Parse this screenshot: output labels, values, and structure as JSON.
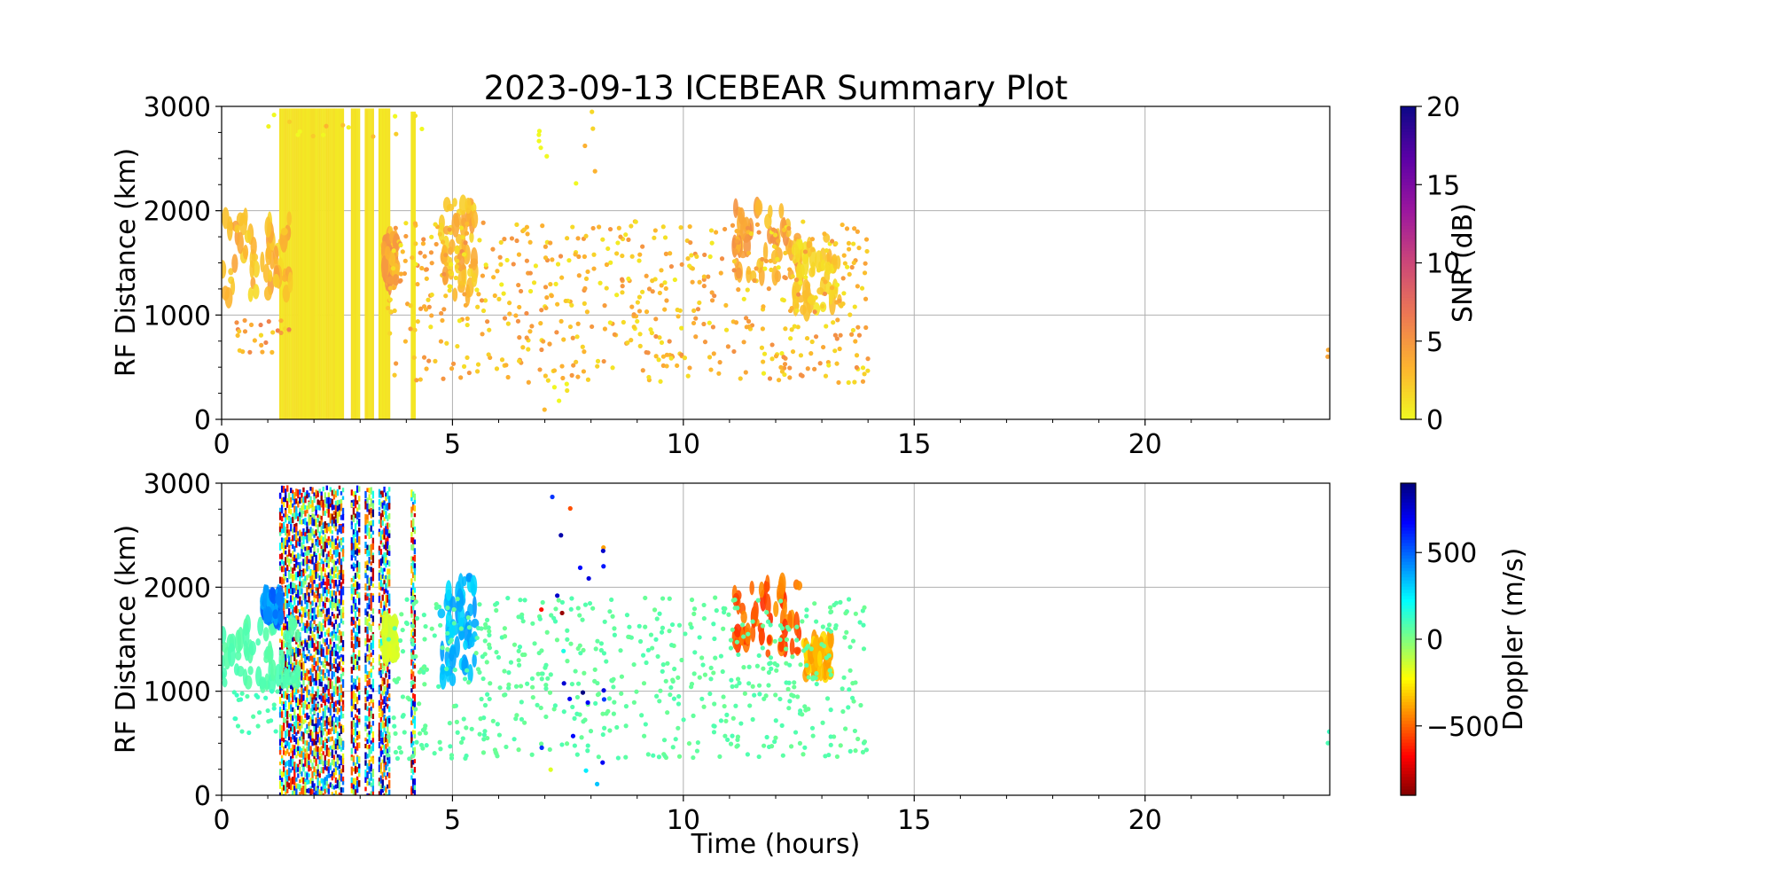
{
  "chart_data": [
    {
      "type": "scatter",
      "title": "2023-09-13 ICEBEAR Summary Plot",
      "xlabel": "",
      "ylabel": "RF Distance (km)",
      "xlim": [
        0,
        24
      ],
      "ylim": [
        0,
        3000
      ],
      "xticks": [
        "0",
        "5",
        "10",
        "15",
        "20"
      ],
      "yticks": [
        "0",
        "1000",
        "2000",
        "3000"
      ],
      "grid": true,
      "color_variable": "SNR (dB)",
      "colorbar": {
        "label": "SNR (dB)",
        "range": [
          0,
          20
        ],
        "ticks": [
          "0",
          "5",
          "10",
          "15",
          "20"
        ],
        "colormap": "plasma_r",
        "stops": [
          "#f0f921",
          "#fdb42f",
          "#ed7953",
          "#cc4778",
          "#9c179e",
          "#5c01a6",
          "#0d0887"
        ]
      },
      "features": [
        {
          "kind": "band",
          "x": [
            1.25,
            2.65
          ],
          "y": [
            0,
            2980
          ],
          "value": 1
        },
        {
          "kind": "band",
          "x": [
            2.8,
            3.0
          ],
          "y": [
            0,
            2980
          ],
          "value": 1
        },
        {
          "kind": "band",
          "x": [
            3.1,
            3.3
          ],
          "y": [
            0,
            2980
          ],
          "value": 1
        },
        {
          "kind": "band",
          "x": [
            3.4,
            3.65
          ],
          "y": [
            0,
            2980
          ],
          "value": 1
        },
        {
          "kind": "band",
          "x": [
            4.1,
            4.2
          ],
          "y": [
            0,
            2950
          ],
          "value": 1
        },
        {
          "kind": "blob",
          "x": [
            0.0,
            1.5
          ],
          "y": [
            1150,
            1950
          ],
          "value": 3
        },
        {
          "kind": "blob",
          "x": [
            3.5,
            3.8
          ],
          "y": [
            1300,
            1750
          ],
          "value": 4
        },
        {
          "kind": "blob",
          "x": [
            4.75,
            5.5
          ],
          "y": [
            1150,
            2100
          ],
          "value": 3
        },
        {
          "kind": "blob",
          "x": [
            11.1,
            12.6
          ],
          "y": [
            1350,
            2050
          ],
          "value": 4
        },
        {
          "kind": "blob",
          "x": [
            12.4,
            13.4
          ],
          "y": [
            1050,
            1750
          ],
          "value": 2
        }
      ],
      "scatter": [
        {
          "x": [
            0.3,
            1.5
          ],
          "y": [
            600,
            950
          ],
          "n": 25,
          "value": 4
        },
        {
          "x": [
            1.0,
            4.5
          ],
          "y": [
            2700,
            2950
          ],
          "n": 15,
          "value": 1
        },
        {
          "x": [
            3.6,
            14.0
          ],
          "y": [
            350,
            1900
          ],
          "n": 600,
          "value": 3
        },
        {
          "x": [
            6.8,
            8.2
          ],
          "y": [
            2200,
            3000
          ],
          "n": 10,
          "value": 1
        },
        {
          "x": [
            6.9,
            7.5
          ],
          "y": [
            50,
            400
          ],
          "n": 6,
          "value": 1
        },
        {
          "x": [
            23.95,
            24.0
          ],
          "y": [
            500,
            750
          ],
          "n": 2,
          "value": 4
        }
      ]
    },
    {
      "type": "scatter",
      "title": "",
      "xlabel": "Time (hours)",
      "ylabel": "RF Distance (km)",
      "xlim": [
        0,
        24
      ],
      "ylim": [
        0,
        3000
      ],
      "xticks": [
        "0",
        "5",
        "10",
        "15",
        "20"
      ],
      "yticks": [
        "0",
        "1000",
        "2000",
        "3000"
      ],
      "grid": true,
      "color_variable": "Doppler (m/s)",
      "colorbar": {
        "label": "Doppler (m/s)",
        "range": [
          -900,
          900
        ],
        "ticks": [
          "−500",
          "0",
          "500"
        ],
        "tick_values": [
          -500,
          0,
          500
        ],
        "colormap": "jet_r",
        "stops": [
          "#7f0000",
          "#ff0000",
          "#ff8000",
          "#ffff00",
          "#80ff80",
          "#00ffff",
          "#0080ff",
          "#0000ff",
          "#00007f"
        ]
      },
      "features": [
        {
          "kind": "band",
          "x": [
            1.25,
            2.65
          ],
          "y": [
            0,
            2980
          ],
          "value": null
        },
        {
          "kind": "band",
          "x": [
            2.8,
            3.0
          ],
          "y": [
            0,
            2980
          ],
          "value": null
        },
        {
          "kind": "band",
          "x": [
            3.1,
            3.3
          ],
          "y": [
            0,
            2980
          ],
          "value": null
        },
        {
          "kind": "band",
          "x": [
            3.4,
            3.65
          ],
          "y": [
            0,
            2980
          ],
          "value": null
        },
        {
          "kind": "band",
          "x": [
            4.1,
            4.2
          ],
          "y": [
            0,
            2950
          ],
          "value": null
        },
        {
          "kind": "blob",
          "x": [
            0.0,
            1.7
          ],
          "y": [
            1050,
            1650
          ],
          "value": 80
        },
        {
          "kind": "blob",
          "x": [
            0.9,
            1.3
          ],
          "y": [
            1700,
            1950
          ],
          "value": 450
        },
        {
          "kind": "blob",
          "x": [
            4.75,
            5.5
          ],
          "y": [
            1100,
            2100
          ],
          "value": 350
        },
        {
          "kind": "blob",
          "x": [
            3.5,
            3.8
          ],
          "y": [
            1300,
            1700
          ],
          "value": -150
        },
        {
          "kind": "blob",
          "x": [
            11.1,
            12.6
          ],
          "y": [
            1350,
            2050
          ],
          "value": -500
        },
        {
          "kind": "blob",
          "x": [
            12.6,
            13.2
          ],
          "y": [
            1150,
            1500
          ],
          "value": -350
        }
      ],
      "scatter": [
        {
          "x": [
            3.6,
            14.0
          ],
          "y": [
            350,
            1900
          ],
          "n": 600,
          "value": 60
        },
        {
          "x": [
            0.2,
            1.3
          ],
          "y": [
            600,
            1000
          ],
          "n": 25,
          "value": 100
        },
        {
          "x": [
            6.9,
            8.3
          ],
          "y": [
            100,
            2900
          ],
          "n": 25,
          "value": null
        },
        {
          "x": [
            23.95,
            24.0
          ],
          "y": [
            500,
            750
          ],
          "n": 2,
          "value": 100
        }
      ]
    }
  ]
}
